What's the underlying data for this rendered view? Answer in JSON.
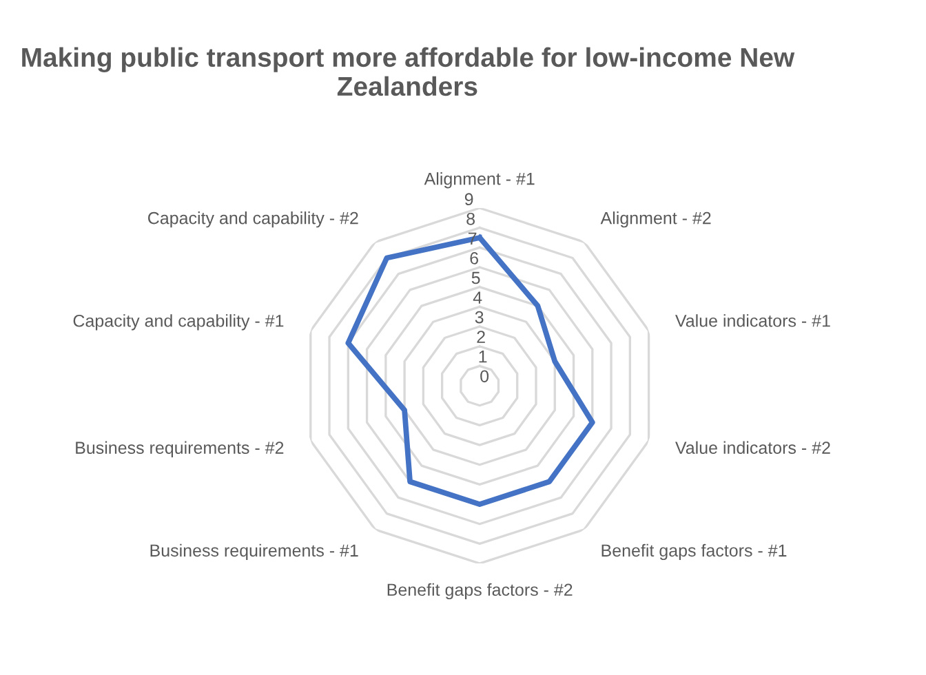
{
  "chart_data": {
    "type": "radar",
    "title": "Making public transport more affordable for low-income New Zealanders",
    "categories": [
      "Alignment - #1",
      "Alignment - #2",
      "Value indicators - #1",
      "Value indicators - #2",
      "Benefit gaps factors - #1",
      "Benefit gaps factors - #2",
      "Business requirements - #1",
      "Business requirements - #2",
      "Capacity and capability - #1",
      "Capacity and capability - #2"
    ],
    "series": [
      {
        "color": "#4472c4",
        "values": [
          7.5,
          5,
          4,
          6,
          6,
          6,
          6,
          4,
          7,
          8
        ]
      }
    ],
    "ylim": [
      0,
      9
    ],
    "yticks": [
      0,
      1,
      2,
      3,
      4,
      5,
      6,
      7,
      8,
      9
    ],
    "grid": true,
    "legend": false
  }
}
